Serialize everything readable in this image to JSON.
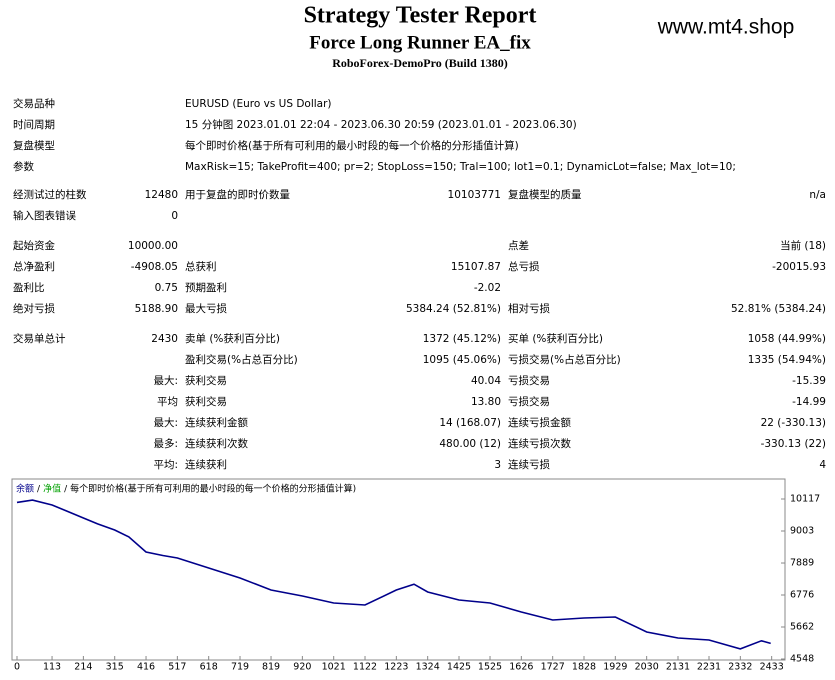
{
  "header": {
    "title": "Strategy Tester Report",
    "subtitle": "Force Long Runner EA_fix",
    "server": "RoboForex-DemoPro (Build 1380)",
    "watermark": "www.mt4.shop"
  },
  "info": [
    {
      "label": "交易品种",
      "value": "EURUSD (Euro vs US Dollar)"
    },
    {
      "label": "时间周期",
      "value": "15 分钟图 2023.01.01 22:04 - 2023.06.30 20:59 (2023.01.01 - 2023.06.30)"
    },
    {
      "label": "复盘模型",
      "value": "每个即时价格(基于所有可利用的最小时段的每一个价格的分形插值计算)"
    },
    {
      "label": "参数",
      "value": "MaxRisk=15; TakeProfit=400; pr=2; StopLoss=150; Tral=100; lot1=0.1; DynamicLot=false; Max_lot=10;"
    }
  ],
  "table": {
    "rows": [
      {
        "label1": "经测试过的柱数",
        "value1": "12480",
        "label2": "用于复盘的即时价数量",
        "value2": "10103771",
        "label3": "复盘模型的质量",
        "value3": "n/a"
      },
      {
        "label1": "输入图表错误",
        "value1": "0"
      },
      {
        "label1": "起始资金",
        "value1": "10000.00",
        "label3": "点差",
        "value3": "当前 (18)"
      },
      {
        "label1": "总净盈利",
        "value1": "-4908.05",
        "label2": "总获利",
        "value2": "15107.87",
        "label3": "总亏损",
        "value3": "-20015.93"
      },
      {
        "label1": "盈利比",
        "value1": "0.75",
        "label2": "预期盈利",
        "value2": "-2.02"
      },
      {
        "label1": "绝对亏损",
        "value1": "5188.90",
        "label2": "最大亏损",
        "value2": "5384.24 (52.81%)",
        "label3": "相对亏损",
        "value3": "52.81% (5384.24)"
      },
      {
        "label1": "交易单总计",
        "value1": "2430",
        "label2": "卖单 (%获利百分比)",
        "value2": "1372 (45.12%)",
        "label3": "买单 (%获利百分比)",
        "value3": "1058 (44.99%)"
      },
      {
        "label2": "盈利交易(%占总百分比)",
        "value2": "1095 (45.06%)",
        "label3": "亏损交易(%占总百分比)",
        "value3": "1335 (54.94%)"
      },
      {
        "value1": "最大:",
        "label2": "获利交易",
        "value2": "40.04",
        "label3": "亏损交易",
        "value3": "-15.39"
      },
      {
        "value1": "平均",
        "label2": "获利交易",
        "value2": "13.80",
        "label3": "亏损交易",
        "value3": "-14.99"
      },
      {
        "value1": "最大:",
        "label2": "连续获利金额",
        "value2": "14 (168.07)",
        "label3": "连续亏损金额",
        "value3": "22 (-330.13)"
      },
      {
        "value1": "最多:",
        "label2": "连续获利次数",
        "value2": "480.00 (12)",
        "label3": "连续亏损次数",
        "value3": "-330.13 (22)"
      },
      {
        "value1": "平均:",
        "label2": "连续获利",
        "value2": "3",
        "label3": "连续亏损",
        "value3": "4"
      }
    ]
  },
  "chart_data": {
    "type": "line",
    "legend": [
      {
        "name": "余额",
        "color": "#00008b"
      },
      {
        "name": "净值",
        "color": "#00a000"
      }
    ],
    "legend_separator": "/",
    "legend_note": "每个即时价格(基于所有可利用的最小时段的每一个价格的分形插值计算)",
    "x": [
      0,
      50,
      113,
      160,
      214,
      260,
      315,
      360,
      416,
      470,
      517,
      618,
      719,
      819,
      920,
      1021,
      1122,
      1223,
      1280,
      1324,
      1425,
      1525,
      1626,
      1727,
      1828,
      1929,
      2030,
      2131,
      2231,
      2332,
      2400,
      2430
    ],
    "series": [
      {
        "name": "余额",
        "color": "#00008b",
        "values": [
          10000,
          10080,
          9909,
          9700,
          9457,
          9250,
          9039,
          8800,
          8273,
          8150,
          8064,
          7716,
          7368,
          6950,
          6741,
          6497,
          6428,
          6950,
          7150,
          6880,
          6602,
          6497,
          6184,
          5906,
          5975,
          6010,
          5488,
          5279,
          5209,
          4900,
          5180,
          5092
        ]
      }
    ],
    "xlim": [
      0,
      2476
    ],
    "ylim": [
      4548,
      10709
    ],
    "xticks": [
      0,
      113,
      214,
      315,
      416,
      517,
      618,
      719,
      819,
      920,
      1021,
      1122,
      1223,
      1324,
      1425,
      1525,
      1626,
      1727,
      1828,
      1929,
      2030,
      2131,
      2231,
      2332,
      2433
    ],
    "yticks": [
      10117,
      9003,
      7889,
      6776,
      5662,
      4548
    ]
  }
}
